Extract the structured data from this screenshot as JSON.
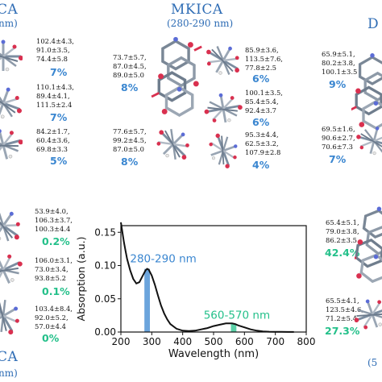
{
  "top_left": {
    "title_fragment": "CA",
    "sub_fragment": "nm)"
  },
  "top_center": {
    "title": "MKICA",
    "subtitle": "(280-290 nm)"
  },
  "top_right": {
    "title_fragment": "D"
  },
  "bottom_left": {
    "title_fragment": "CA",
    "sub_fragment": "nm)"
  },
  "bottom_right": {
    "sub_fragment": "(5"
  },
  "conformers": {
    "left_top": [
      {
        "angles": "102.4±4.3,\n91.0±3.5,\n74.4±5.8",
        "pct": "7%"
      },
      {
        "angles": "110.1±4.3,\n89.4±4.1,\n111.5±2.4",
        "pct": "7%"
      },
      {
        "angles": "84.2±1.7,\n60.4±3.6,\n69.8±3.3",
        "pct": "5%"
      }
    ],
    "center_left": [
      {
        "angles": "73.7±5.7,\n87.0±4.5,\n89.0±5.0",
        "pct": "8%"
      },
      {
        "angles": "77.6±5.7,\n99.2±4.5,\n87.0±5.0",
        "pct": "8%"
      }
    ],
    "center_right": [
      {
        "angles": "85.9±3.6,\n113.5±7.6,\n77.8±2.5",
        "pct": "6%"
      },
      {
        "angles": "100.1±3.5,\n85.4±5.4,\n92.4±3.7",
        "pct": "6%"
      },
      {
        "angles": "95.3±4.4,\n62.5±3.2,\n107.9±2.8",
        "pct": "4%"
      }
    ],
    "right_top": [
      {
        "angles": "65.9±5.1,\n80.2±3.8,\n100.1±3.5",
        "pct": "9%"
      },
      {
        "angles": "69.5±1.6,\n90.6±2.7,\n70.6±7.3",
        "pct": "7%"
      }
    ],
    "left_bottom": [
      {
        "angles": "53.9±4.0,\n106.3±3.7,\n100.3±4.4",
        "pct": "0.2%"
      },
      {
        "angles": "106.0±3.1,\n73.0±3.4,\n93.8±5.2",
        "pct": "0.1%"
      },
      {
        "angles": "103.4±8.4,\n92.0±5.2,\n57.0±4.4",
        "pct": "0%"
      }
    ],
    "right_bottom": [
      {
        "angles": "65.4±5.1,\n79.0±3.8,\n86.2±3.5",
        "pct": "42.4%"
      },
      {
        "angles": "65.5±4.1,\n123.5±4.6,\n71.2±5.4",
        "pct": "27.3%"
      }
    ]
  },
  "chart_data": {
    "type": "line",
    "xlabel": "Wavelength (nm)",
    "ylabel": "Absorption (a.u.)",
    "xlim": [
      200,
      800
    ],
    "ylim": [
      0,
      0.16
    ],
    "xticks": [
      "200",
      "300",
      "400",
      "500",
      "600",
      "700",
      "800"
    ],
    "yticks": [
      "0.00",
      "0.05",
      "0.10",
      "0.15"
    ],
    "x": [
      200,
      205,
      210,
      215,
      220,
      230,
      240,
      250,
      260,
      270,
      280,
      285,
      290,
      300,
      310,
      320,
      330,
      340,
      350,
      360,
      380,
      400,
      420,
      440,
      460,
      480,
      500,
      520,
      540,
      560,
      570,
      580,
      600,
      620,
      640,
      660,
      680,
      700,
      720,
      740,
      760
    ],
    "y": [
      0.165,
      0.15,
      0.135,
      0.122,
      0.11,
      0.093,
      0.08,
      0.073,
      0.075,
      0.084,
      0.093,
      0.095,
      0.094,
      0.085,
      0.071,
      0.055,
      0.04,
      0.028,
      0.019,
      0.012,
      0.005,
      0.002,
      0.0015,
      0.002,
      0.004,
      0.006,
      0.009,
      0.011,
      0.013,
      0.013,
      0.012,
      0.01,
      0.007,
      0.004,
      0.002,
      0.001,
      0.0005,
      0.0003,
      0.0002,
      0.0001,
      0.0001
    ],
    "line_color": "#111111",
    "annotations": [
      {
        "label": "280-290 nm",
        "x_range": [
          280,
          290
        ],
        "color": "#3a86d0"
      },
      {
        "label": "560-570 nm",
        "x_range": [
          560,
          570
        ],
        "color": "#24c08a"
      }
    ]
  }
}
